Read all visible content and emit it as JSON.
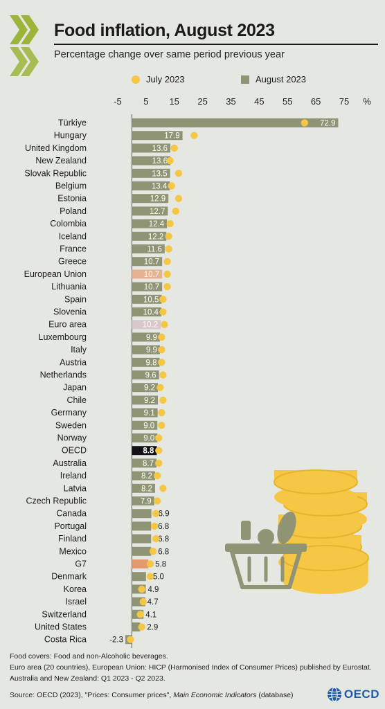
{
  "header": {
    "title": "Food inflation, August 2023",
    "subtitle": "Percentage change over same period previous year"
  },
  "legend": {
    "july_label": "July 2023",
    "august_label": "August 2023"
  },
  "colors": {
    "background": "#e5e7e3",
    "bar": "#8f9475",
    "july_dot": "#f6c744",
    "eu_bar": "#e6b28f",
    "euro_area_bar": "#d9c7c9",
    "oecd_bar": "#141217",
    "g7_bar": "#e39a6f",
    "logo_green": "#9ab53a",
    "oecd_blue": "#1f5aa6",
    "coin": "#f6c744",
    "basket": "#8f9475"
  },
  "icons": [
    "oecd-chevron-logo",
    "coins-illustration",
    "food-basket-illustration",
    "oecd-globe-icon"
  ],
  "chart_data": {
    "type": "bar",
    "orientation": "horizontal",
    "unit_label": "%",
    "x_ticks": [
      "-5",
      "5",
      "15",
      "25",
      "35",
      "45",
      "55",
      "65",
      "75"
    ],
    "xlim": [
      -5,
      75
    ],
    "categories": [
      "Türkiye",
      "Hungary",
      "United Kingdom",
      "New Zealand",
      "Slovak Republic",
      "Belgium",
      "Estonia",
      "Poland",
      "Colombia",
      "Iceland",
      "France",
      "Greece",
      "European Union",
      "Lithuania",
      "Spain",
      "Slovenia",
      "Euro area",
      "Luxembourg",
      "Italy",
      "Austria",
      "Netherlands",
      "Japan",
      "Chile",
      "Germany",
      "Sweden",
      "Norway",
      "OECD",
      "Australia",
      "Ireland",
      "Latvia",
      "Czech Republic",
      "Canada",
      "Portugal",
      "Finland",
      "Mexico",
      "G7",
      "Denmark",
      "Korea",
      "Israel",
      "Switzerland",
      "United States",
      "Costa Rica"
    ],
    "series": [
      {
        "name": "August 2023",
        "type": "bar",
        "values": [
          72.9,
          17.9,
          13.6,
          13.6,
          13.5,
          13.4,
          12.9,
          12.7,
          12.4,
          12.2,
          11.6,
          10.7,
          10.7,
          10.7,
          10.5,
          10.4,
          10.2,
          9.9,
          9.9,
          9.8,
          9.6,
          9.2,
          9.2,
          9.1,
          9.0,
          9.0,
          8.8,
          8.7,
          8.2,
          8.2,
          7.9,
          6.9,
          6.8,
          6.8,
          6.8,
          5.8,
          5.0,
          4.9,
          4.7,
          4.1,
          2.9,
          -2.3
        ],
        "labels": [
          "72.9",
          "17.9",
          "13.6",
          "13.6",
          "13.5",
          "13.4",
          "12.9",
          "12.7",
          "12.4",
          "12.2",
          "11.6",
          "10.7",
          "10.7",
          "10.7",
          "10.5",
          "10.4",
          "10.2",
          "9.9",
          "9.9",
          "9.8",
          "9.6",
          "9.2",
          "9.2",
          "9.1",
          "9.0",
          "9.0",
          "8.8",
          "8.7",
          "8.2",
          "8.2",
          "7.9",
          "6.9",
          "6.8",
          "6.8",
          "6.8",
          "5.8",
          "5.0",
          "4.9",
          "4.7",
          "4.1",
          "2.9",
          "-2.3"
        ]
      },
      {
        "name": "July 2023",
        "type": "dot",
        "values": [
          61.0,
          22.0,
          15.0,
          13.5,
          16.5,
          14.0,
          16.5,
          15.5,
          13.5,
          13.0,
          13.0,
          12.5,
          12.5,
          12.5,
          11.0,
          11.0,
          11.5,
          10.5,
          10.5,
          10.5,
          11.0,
          10.0,
          11.0,
          10.5,
          10.5,
          9.5,
          9.5,
          9.5,
          9.0,
          11.0,
          9.0,
          8.5,
          8.0,
          8.5,
          7.5,
          6.5,
          6.5,
          3.5,
          4.0,
          3.0,
          3.5,
          -0.5
        ]
      }
    ],
    "highlights": {
      "European Union": "#e6b28f",
      "Euro area": "#d9c7c9",
      "OECD": "#141217",
      "G7": "#e39a6f"
    }
  },
  "notes": {
    "line1": "Food covers: Food and non-Alcoholic beverages.",
    "line2": "Euro area (20 countries), European Union: HICP (Harmonised Index of Consumer Prices) published by Eurostat.",
    "line3": "Australia and New Zealand:  Q1 2023 - Q2 2023."
  },
  "source": {
    "prefix": "Source: OECD (2023), \"Prices: Consumer prices\", ",
    "italic": "Main Economic Indicators",
    "suffix": " (database)"
  },
  "brand": {
    "name": "OECD"
  }
}
